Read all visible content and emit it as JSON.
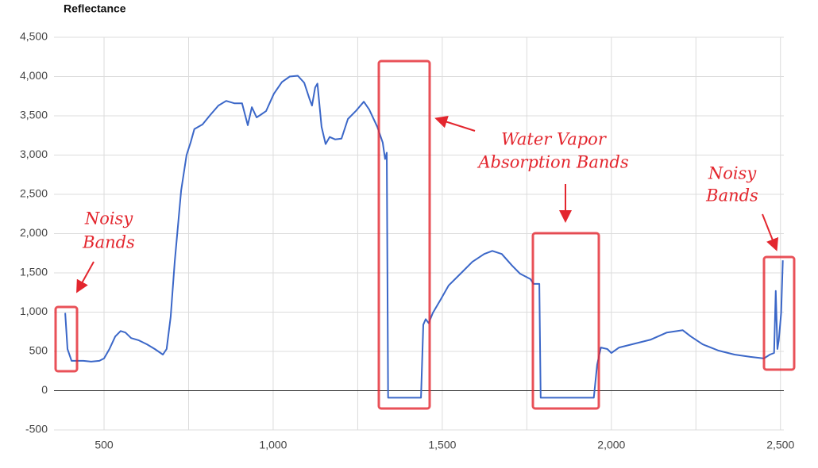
{
  "chart_data": {
    "type": "line",
    "title": "Reflectance",
    "color": "#3b67c8",
    "xlim": [
      352,
      2510
    ],
    "ylim": [
      -500,
      4500
    ],
    "xticks": [
      500,
      {
        "value": 1000,
        "label": "1,000"
      },
      {
        "value": 1500,
        "label": "1,500"
      },
      {
        "value": 2000,
        "label": "2,000"
      },
      {
        "value": 2500,
        "label": "2,500"
      }
    ],
    "xminor": [
      750,
      1250,
      1750,
      2250
    ],
    "yticks": [
      -500,
      0,
      500,
      {
        "value": 1000,
        "label": "1,000"
      },
      {
        "value": 1500,
        "label": "1,500"
      },
      {
        "value": 2000,
        "label": "2,000"
      },
      {
        "value": 2500,
        "label": "2,500"
      },
      {
        "value": 3000,
        "label": "3,000"
      },
      {
        "value": 3500,
        "label": "3,500"
      },
      {
        "value": 4000,
        "label": "4,000"
      },
      {
        "value": 4500,
        "label": "4,500"
      }
    ],
    "grid": true,
    "x": [
      385,
      392,
      404,
      416,
      439,
      462,
      486,
      500,
      516,
      533,
      549,
      563,
      580,
      603,
      627,
      650,
      674,
      685,
      697,
      709,
      728,
      744,
      756,
      767,
      791,
      814,
      838,
      861,
      885,
      908,
      925,
      937,
      951,
      962,
      979,
      1002,
      1026,
      1049,
      1073,
      1092,
      1108,
      1115,
      1124,
      1131,
      1143,
      1155,
      1167,
      1183,
      1202,
      1221,
      1244,
      1268,
      1284,
      1308,
      1324,
      1331,
      1336,
      1340,
      1437,
      1444,
      1451,
      1460,
      1472,
      1495,
      1519,
      1554,
      1589,
      1624,
      1648,
      1676,
      1707,
      1730,
      1761,
      1770,
      1787,
      1791,
      1948,
      1958,
      1969,
      1988,
      2000,
      2023,
      2070,
      2117,
      2164,
      2211,
      2235,
      2270,
      2317,
      2364,
      2411,
      2451,
      2469,
      2481,
      2486,
      2491,
      2495,
      2502,
      2507
    ],
    "values": [
      990,
      530,
      380,
      380,
      380,
      370,
      380,
      410,
      530,
      690,
      760,
      740,
      670,
      640,
      590,
      530,
      460,
      530,
      940,
      1640,
      2550,
      3000,
      3160,
      3330,
      3390,
      3510,
      3630,
      3690,
      3660,
      3660,
      3380,
      3610,
      3480,
      3510,
      3560,
      3780,
      3930,
      4000,
      4010,
      3920,
      3710,
      3630,
      3860,
      3910,
      3360,
      3140,
      3230,
      3200,
      3210,
      3460,
      3560,
      3680,
      3580,
      3360,
      3160,
      2950,
      3030,
      -90,
      -90,
      840,
      910,
      860,
      990,
      1160,
      1340,
      1490,
      1640,
      1740,
      1780,
      1740,
      1590,
      1490,
      1420,
      1360,
      1360,
      -90,
      -90,
      330,
      550,
      530,
      480,
      550,
      600,
      650,
      740,
      770,
      690,
      590,
      510,
      460,
      430,
      410,
      460,
      480,
      1270,
      530,
      640,
      990,
      1660
    ],
    "annotations": [
      {
        "lines": [
          "Noisy",
          "Bands"
        ]
      },
      {
        "lines": [
          "Water Vapor",
          "Absorption Bands"
        ]
      },
      {
        "lines": [
          "Noisy",
          "Bands"
        ]
      }
    ]
  }
}
